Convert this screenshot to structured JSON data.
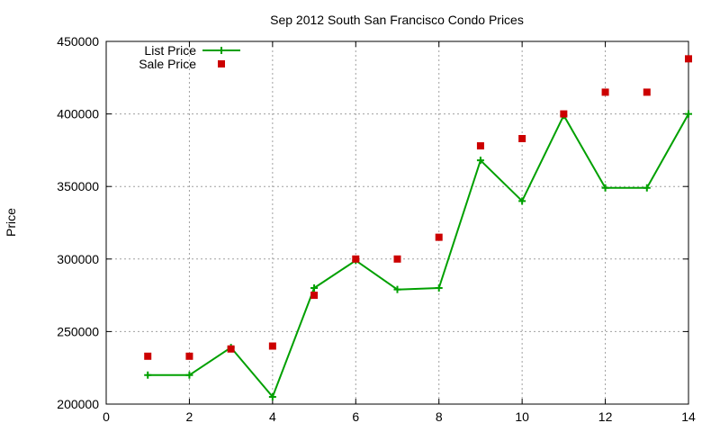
{
  "chart_data": {
    "type": "line",
    "title": "Sep 2012 South San Francisco Condo Prices",
    "xlabel": "",
    "ylabel": "Price",
    "xlim": [
      0,
      14
    ],
    "ylim": [
      200000,
      450000
    ],
    "x_ticks": [
      "0",
      "2",
      "4",
      "6",
      "8",
      "10",
      "12",
      "14"
    ],
    "y_ticks": [
      "200000",
      "250000",
      "300000",
      "350000",
      "400000",
      "450000"
    ],
    "grid": true,
    "legend_position": "top-left",
    "series": [
      {
        "name": "List Price",
        "style": "line-with-plus-markers",
        "color": "#00a000",
        "x": [
          1,
          2,
          3,
          4,
          5,
          6,
          7,
          8,
          9,
          10,
          11,
          12,
          13,
          14
        ],
        "values": [
          220000,
          220000,
          239000,
          205000,
          280000,
          299000,
          279000,
          280000,
          368000,
          340000,
          399000,
          349000,
          349000,
          400000
        ]
      },
      {
        "name": "Sale Price",
        "style": "square-markers",
        "color": "#cc0000",
        "x": [
          1,
          2,
          3,
          4,
          5,
          6,
          7,
          8,
          9,
          10,
          11,
          12,
          13,
          14
        ],
        "values": [
          233000,
          233000,
          238000,
          240000,
          275000,
          300000,
          300000,
          315000,
          378000,
          383000,
          400000,
          415000,
          415000,
          438000
        ]
      }
    ]
  }
}
